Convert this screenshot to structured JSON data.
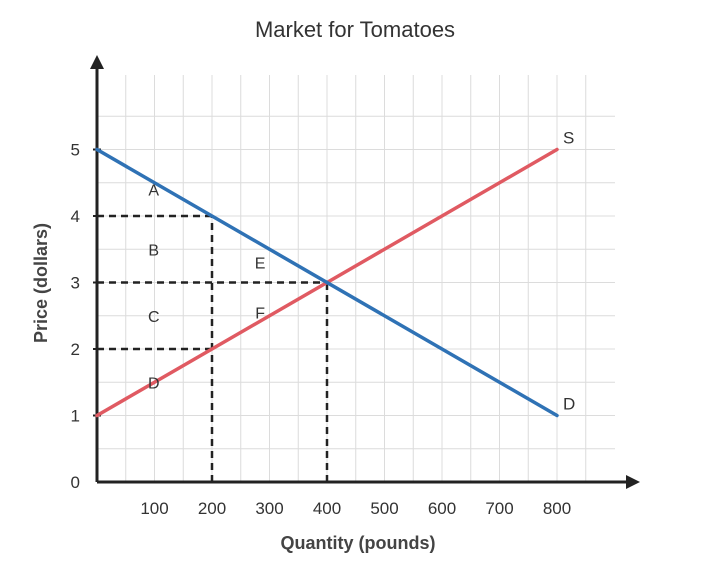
{
  "chart_data": {
    "type": "line",
    "title": "Market for Tomatoes",
    "xlabel": "Quantity (pounds)",
    "ylabel": "Price (dollars)",
    "xlim": [
      0,
      900
    ],
    "ylim": [
      0,
      6
    ],
    "x_ticks": [
      100,
      200,
      300,
      400,
      500,
      600,
      700,
      800
    ],
    "y_ticks": [
      0,
      1,
      2,
      3,
      4,
      5
    ],
    "grid": true,
    "series": [
      {
        "name": "S",
        "color": "#e05a62",
        "x": [
          0,
          800
        ],
        "y": [
          1,
          5
        ]
      },
      {
        "name": "D",
        "color": "#2f72b5",
        "x": [
          0,
          800
        ],
        "y": [
          5,
          1
        ]
      }
    ],
    "reference_lines": [
      {
        "from": [
          0,
          4
        ],
        "to": [
          200,
          4
        ]
      },
      {
        "from": [
          0,
          3
        ],
        "to": [
          400,
          3
        ]
      },
      {
        "from": [
          0,
          2
        ],
        "to": [
          200,
          2
        ]
      },
      {
        "from": [
          200,
          0
        ],
        "to": [
          200,
          4
        ]
      },
      {
        "from": [
          400,
          0
        ],
        "to": [
          400,
          3
        ]
      }
    ],
    "area_labels": [
      {
        "text": "A",
        "x": 50,
        "y": 4.4
      },
      {
        "text": "B",
        "x": 50,
        "y": 3.5
      },
      {
        "text": "C",
        "x": 50,
        "y": 2.5
      },
      {
        "text": "D",
        "x": 50,
        "y": 1.5
      },
      {
        "text": "E",
        "x": 235,
        "y": 3.3
      },
      {
        "text": "F",
        "x": 235,
        "y": 2.55
      }
    ]
  }
}
